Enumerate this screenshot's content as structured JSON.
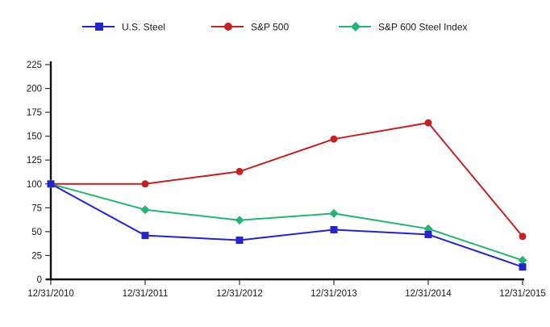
{
  "chart_data": {
    "type": "line",
    "title": "",
    "categories": [
      "12/31/2010",
      "12/31/2011",
      "12/31/2012",
      "12/31/2013",
      "12/31/2014",
      "12/31/2015"
    ],
    "series": [
      {
        "name": "U.S. Steel",
        "marker": "square",
        "color": "#2424CC",
        "values": [
          100,
          46,
          41,
          52,
          47,
          13
        ]
      },
      {
        "name": "S&P 500",
        "marker": "circle",
        "color": "#C32222",
        "values": [
          100,
          100,
          113,
          147,
          164,
          45
        ]
      },
      {
        "name": "S&P 600 Steel Index",
        "marker": "diamond",
        "color": "#25B475",
        "values": [
          100,
          73,
          62,
          69,
          53,
          20
        ]
      }
    ],
    "xlabel": "",
    "ylabel": "",
    "ylim": [
      0,
      225
    ],
    "yticks": [
      0,
      25,
      50,
      75,
      100,
      125,
      150,
      175,
      200,
      225
    ],
    "grid": false,
    "legend_position": "top",
    "axis_color": "#111111",
    "tick_color": "#333333",
    "text_color": "#1a1a1a"
  }
}
